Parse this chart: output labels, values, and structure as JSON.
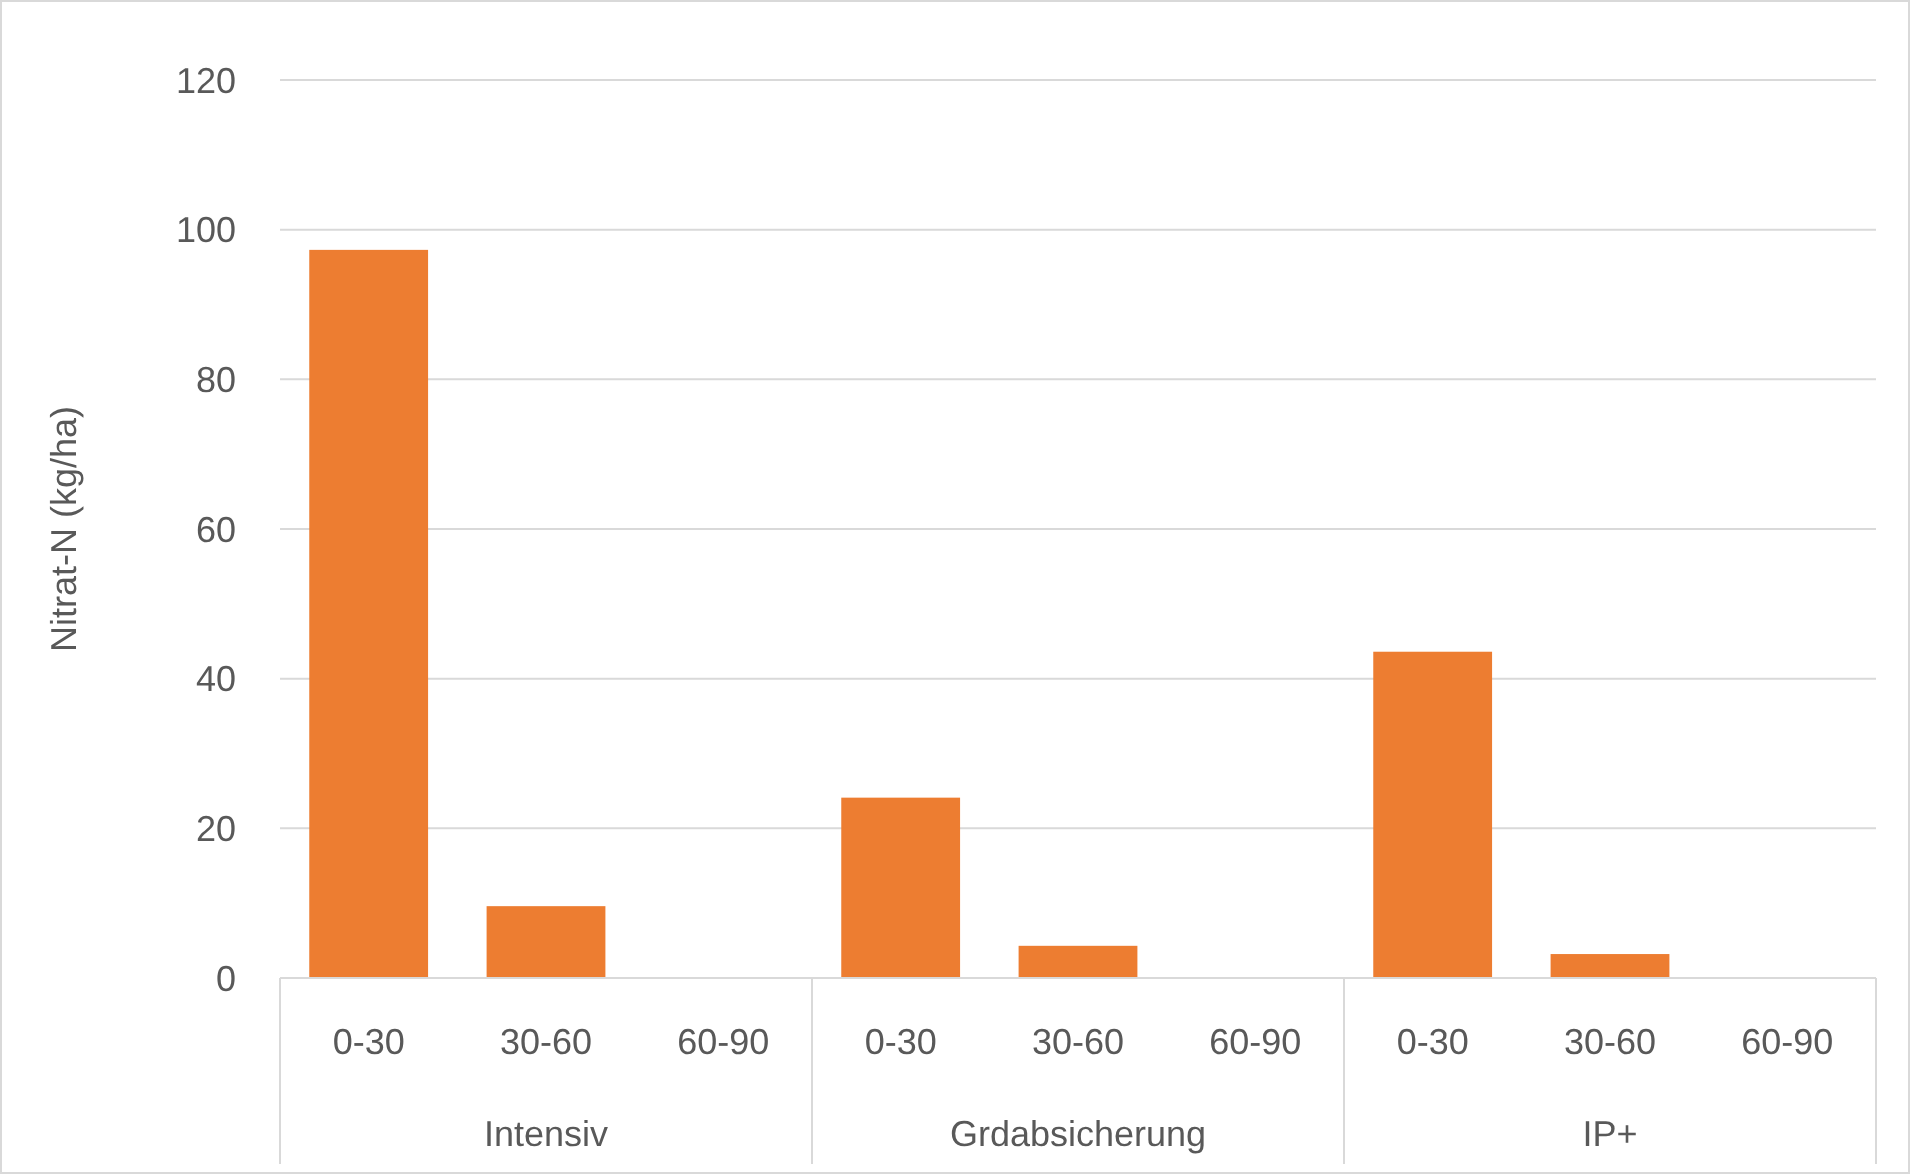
{
  "chart_data": {
    "type": "bar",
    "ylabel": "Nitrat-N (kg/ha)",
    "categories": [
      "0-30",
      "30-60",
      "60-90",
      "0-30",
      "30-60",
      "60-90",
      "0-30",
      "30-60",
      "60-90"
    ],
    "values": [
      97.3,
      9.6,
      0,
      24.1,
      4.3,
      0,
      43.6,
      3.2,
      0
    ],
    "color": "#ed7d31",
    "ylim": [
      0,
      120
    ],
    "yticks": [
      0,
      20,
      40,
      60,
      80,
      100,
      120
    ],
    "grid": "y",
    "annotations": [
      "Intensiv",
      "Grdabsicherung",
      "IP+"
    ]
  }
}
